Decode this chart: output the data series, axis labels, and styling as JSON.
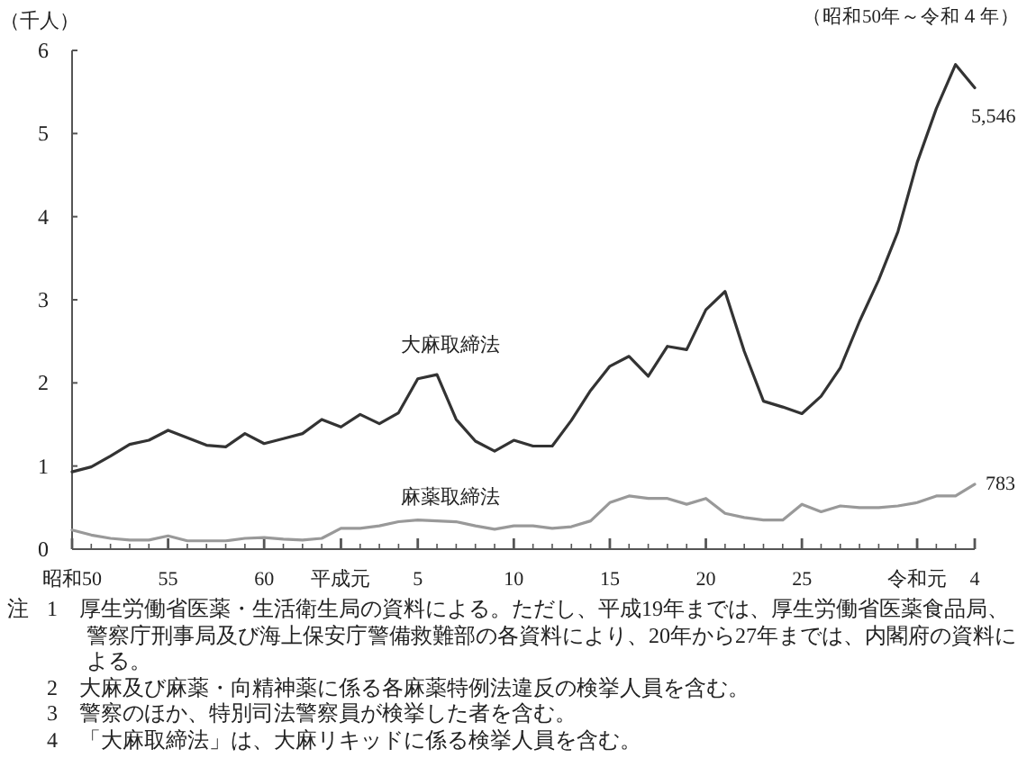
{
  "chart_data": {
    "type": "line",
    "subtitle": "（昭和50年～令和４年）",
    "ylabel": "（千人）",
    "categories": [
      "昭和50",
      null,
      null,
      null,
      null,
      "55",
      null,
      null,
      null,
      null,
      "60",
      null,
      null,
      null,
      "平成元",
      null,
      null,
      null,
      "5",
      null,
      null,
      null,
      null,
      "10",
      null,
      null,
      null,
      null,
      "15",
      null,
      null,
      null,
      null,
      "20",
      null,
      null,
      null,
      null,
      "25",
      null,
      null,
      null,
      null,
      null,
      "令和元",
      null,
      null,
      "4"
    ],
    "ylim": [
      0,
      6
    ],
    "yticks": [
      0,
      1,
      2,
      3,
      4,
      5,
      6
    ],
    "series": [
      {
        "name": "大麻取締法",
        "color": "#333333",
        "values": [
          0.93,
          0.99,
          1.12,
          1.26,
          1.31,
          1.43,
          1.34,
          1.25,
          1.23,
          1.39,
          1.27,
          1.33,
          1.39,
          1.56,
          1.47,
          1.62,
          1.51,
          1.64,
          2.05,
          2.1,
          1.56,
          1.3,
          1.18,
          1.31,
          1.24,
          1.24,
          1.55,
          1.91,
          2.2,
          2.32,
          2.08,
          2.44,
          2.4,
          2.88,
          3.1,
          2.38,
          1.78,
          1.71,
          1.63,
          1.84,
          2.18,
          2.74,
          3.24,
          3.82,
          4.65,
          5.3,
          5.83,
          5.55
        ]
      },
      {
        "name": "麻薬取締法",
        "color": "#999999",
        "values": [
          0.23,
          0.17,
          0.13,
          0.11,
          0.11,
          0.16,
          0.1,
          0.1,
          0.1,
          0.13,
          0.14,
          0.12,
          0.11,
          0.13,
          0.25,
          0.25,
          0.28,
          0.33,
          0.35,
          0.34,
          0.33,
          0.28,
          0.24,
          0.28,
          0.28,
          0.25,
          0.27,
          0.34,
          0.56,
          0.64,
          0.61,
          0.61,
          0.54,
          0.61,
          0.43,
          0.38,
          0.35,
          0.35,
          0.54,
          0.45,
          0.52,
          0.5,
          0.5,
          0.52,
          0.56,
          0.64,
          0.64,
          0.78
        ]
      }
    ],
    "annotations": [
      {
        "text": "5,546",
        "x": "4",
        "y": 5.55
      },
      {
        "text": "783",
        "x": "4",
        "y": 0.78
      },
      "注",
      "1　厚生労働省医薬・生活衛生局の資料による。ただし、平成19年までは、厚生労働省医薬食品局、警察庁刑事局及び海上保安庁警備救難部の各資料により、20年から27年までは、内閣府の資料による。",
      "2　大麻及び麻薬・向精神薬に係る各麻薬特例法違反の検挙人員を含む。",
      "3　警察のほか、特別司法警察員が検挙した者を含む。",
      "4　「大麻取締法」は、大麻リキッドに係る検挙人員を含む。"
    ]
  }
}
